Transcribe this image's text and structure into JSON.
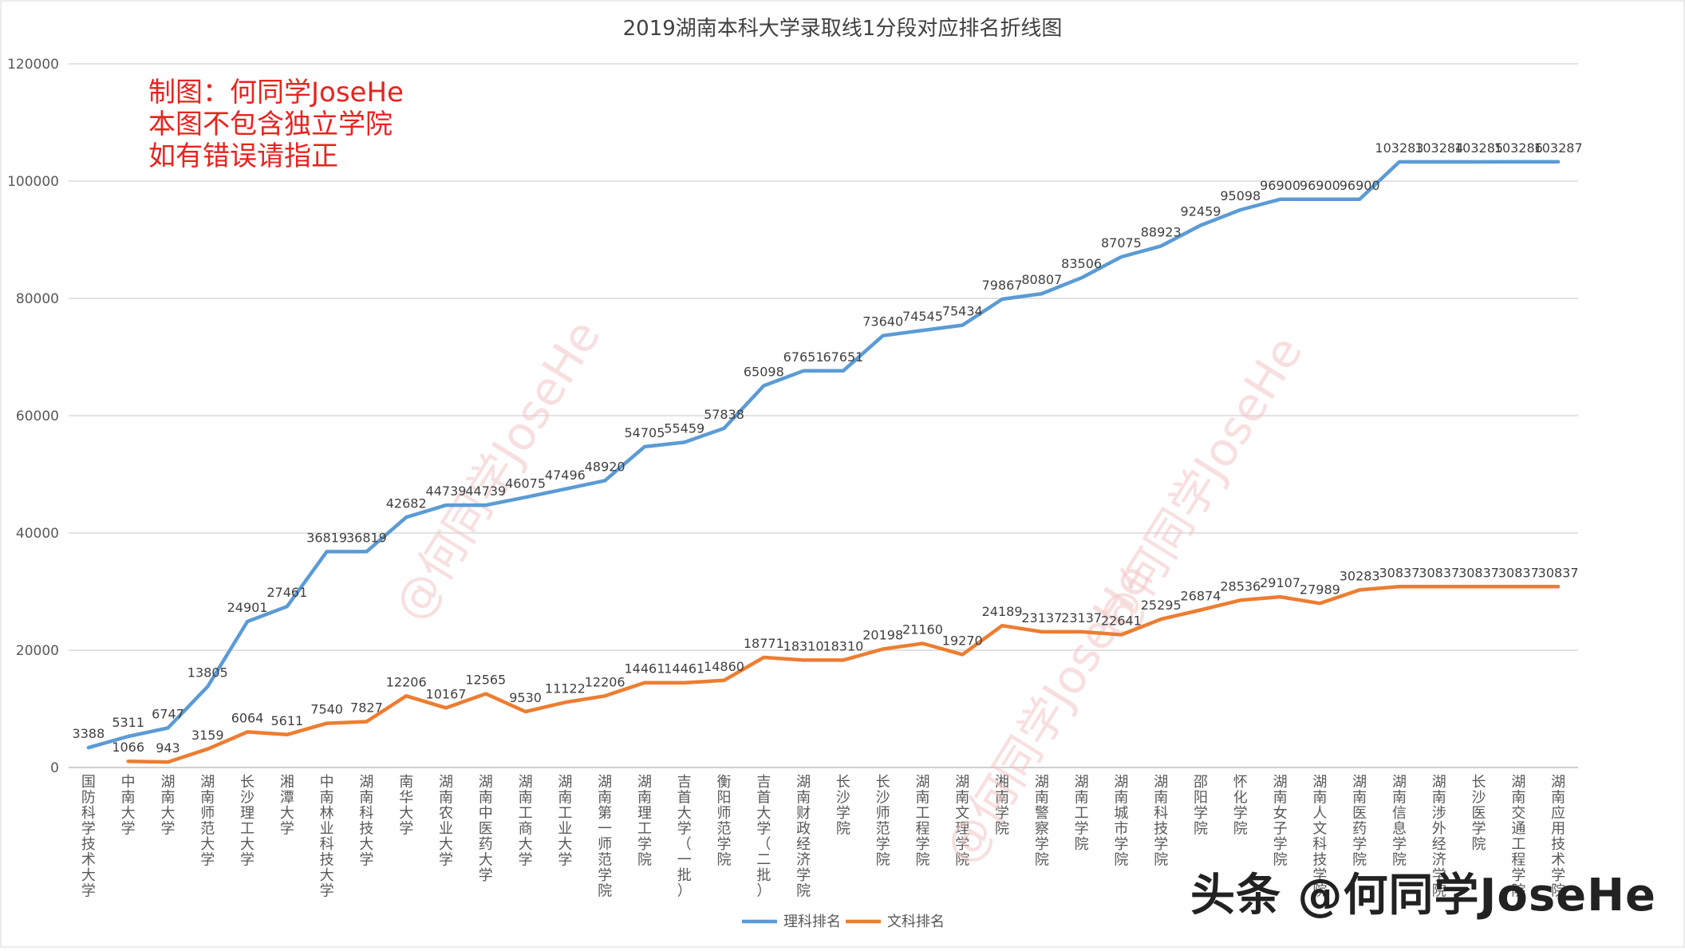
{
  "chart_data": {
    "type": "line",
    "title": "2019湖南本科大学录取线1分段对应排名折线图",
    "categories": [
      "国防科学技术大学",
      "中南大学",
      "湖南大学",
      "湖南师范大学",
      "长沙理工大学",
      "湘潭大学",
      "中南林业科技大学",
      "湖南科技大学",
      "南华大学",
      "湖南农业大学",
      "湖南中医药大学",
      "湖南工商大学",
      "湖南工业大学",
      "湖南第一师范学院",
      "湖南理工学院",
      "吉首大学（一批）",
      "衡阳师范学院",
      "吉首大学（二批）",
      "湖南财政经济学院",
      "长沙学院",
      "长沙师范学院",
      "湖南工程学院",
      "湖南文理学院",
      "湘南学院",
      "湖南警察学院",
      "湖南工学院",
      "湖南城市学院",
      "湖南科技学院",
      "邵阳学院",
      "怀化学院",
      "湖南女子学院",
      "湖南人文科技学院",
      "湖南医药学院",
      "湖南信息学院",
      "湖南涉外经济学院",
      "长沙医学院",
      "湖南交通工程学院",
      "湖南应用技术学院"
    ],
    "series": [
      {
        "name": "理科排名",
        "color": "#5b9bd5",
        "values": [
          3388,
          5311,
          6747,
          13805,
          24901,
          27461,
          36819,
          36819,
          42682,
          44739,
          44739,
          46075,
          47496,
          48920,
          54705,
          55459,
          57838,
          65098,
          67651,
          67651,
          73640,
          74545,
          75434,
          79867,
          80807,
          83506,
          87075,
          88923,
          92459,
          95098,
          96900,
          96900,
          96900,
          103283,
          103284,
          103285,
          103286,
          103287
        ]
      },
      {
        "name": "文科排名",
        "color": "#ed7d31",
        "values": [
          null,
          1066,
          943,
          3159,
          6064,
          5611,
          7540,
          7827,
          12206,
          10167,
          12565,
          9530,
          11122,
          12206,
          14461,
          14461,
          14860,
          18771,
          18310,
          18310,
          20198,
          21160,
          19270,
          24189,
          23137,
          23137,
          22641,
          25295,
          26874,
          28536,
          29107,
          27989,
          30283,
          30837,
          30837,
          30837,
          30837,
          30837
        ]
      }
    ],
    "ylim": [
      0,
      120000
    ],
    "yticks": [
      0,
      20000,
      40000,
      60000,
      80000,
      100000,
      120000
    ],
    "grid": true,
    "legend": "bottom-center",
    "xlabel": "",
    "ylabel": ""
  },
  "annotation": {
    "lines": [
      "制图：何同学JoseHe",
      "本图不包含独立学院",
      "如有错误请指正"
    ],
    "color": "#e8231f"
  },
  "watermarks": {
    "diagonal": [
      "@何同学JoseHe",
      "@何同学JoseHe",
      "@何同学JoseHe"
    ],
    "corner": "头条 @何同学JoseHe"
  }
}
